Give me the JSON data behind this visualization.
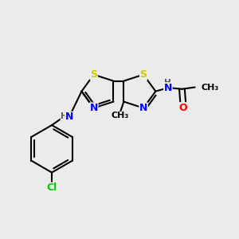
{
  "bg_color": "#ebebeb",
  "atom_colors": {
    "S": "#cccc00",
    "N": "#0000ff",
    "O": "#ff0000",
    "Cl": "#00cc00",
    "C": "#000000",
    "H": "#555555"
  },
  "bond_color": "#000000",
  "bond_width": 1.5,
  "figsize": [
    3.0,
    3.0
  ],
  "dpi": 100
}
